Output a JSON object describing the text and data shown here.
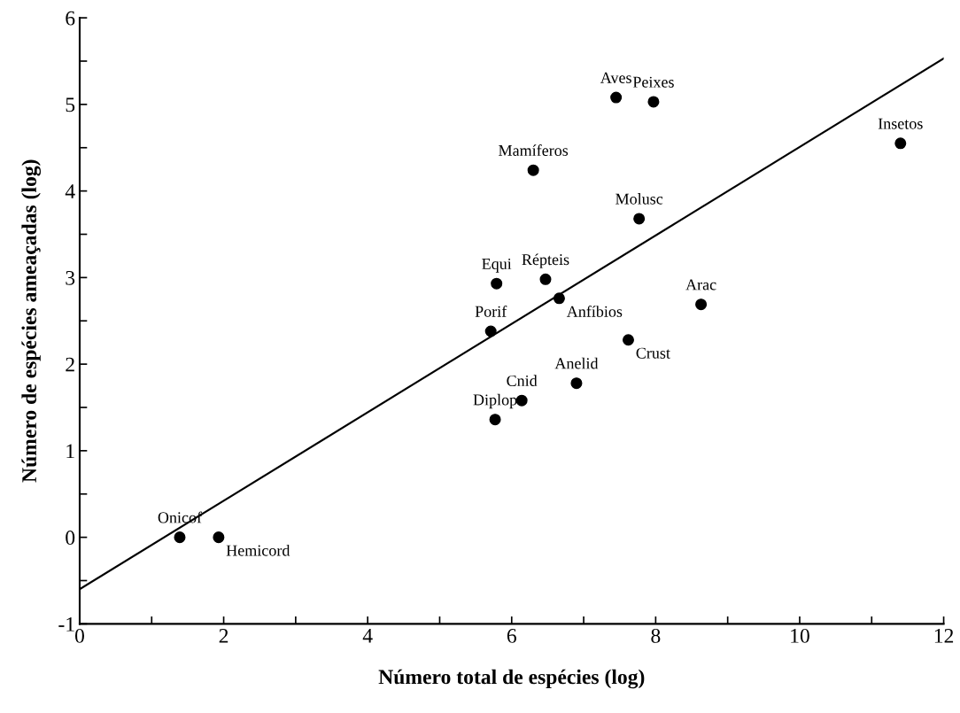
{
  "chart_data": {
    "type": "scatter",
    "xlabel": "Número total de espécies (log)",
    "ylabel": "Número de espécies ameaçadas (log)",
    "xlim": [
      0,
      12
    ],
    "ylim": [
      -1,
      6
    ],
    "xticks": [
      0,
      {
        "value": 1,
        "label": null
      },
      2,
      {
        "value": 3,
        "label": null
      },
      4,
      {
        "value": 5,
        "label": null
      },
      6,
      {
        "value": 7,
        "label": null
      },
      8,
      {
        "value": 9,
        "label": null
      },
      10,
      {
        "value": 11,
        "label": null
      },
      12
    ],
    "yticks": [
      -1,
      {
        "value": -0.5,
        "label": null
      },
      0,
      {
        "value": 0.5,
        "label": null
      },
      1,
      {
        "value": 1.5,
        "label": null
      },
      2,
      {
        "value": 2.5,
        "label": null
      },
      3,
      {
        "value": 3.5,
        "label": null
      },
      4,
      {
        "value": 4.5,
        "label": null
      },
      5,
      {
        "value": 5.5,
        "label": null
      },
      6
    ],
    "grid": false,
    "marker": "circle",
    "series": [
      {
        "color": "#000000",
        "x": [
          1.39,
          1.93,
          5.77,
          6.14,
          6.9,
          5.71,
          5.79,
          6.47,
          6.66,
          7.62,
          8.63,
          7.77,
          6.3,
          7.45,
          7.97,
          11.4
        ],
        "values": [
          0,
          0,
          1.36,
          1.58,
          1.78,
          2.38,
          2.93,
          2.98,
          2.76,
          2.28,
          2.69,
          3.68,
          4.24,
          5.08,
          5.03,
          4.55
        ]
      },
      {
        "type": "line",
        "color": "#000000",
        "marker": "none",
        "x": [
          0,
          12
        ],
        "values": [
          -0.6,
          5.53
        ]
      }
    ],
    "annotations": [
      {
        "text": "Onicof",
        "x": 1.39,
        "y": 0
      },
      {
        "text": "Hemicord",
        "x": 1.93,
        "y": 0
      },
      {
        "text": "Diplop",
        "x": 5.77,
        "y": 1.36
      },
      {
        "text": "Cnid",
        "x": 6.14,
        "y": 1.58
      },
      {
        "text": "Anelid",
        "x": 6.9,
        "y": 1.78
      },
      {
        "text": "Porif",
        "x": 5.71,
        "y": 2.38
      },
      {
        "text": "Equi",
        "x": 5.79,
        "y": 2.93
      },
      {
        "text": "Répteis",
        "x": 6.47,
        "y": 2.98
      },
      {
        "text": "Anfíbios",
        "x": 6.66,
        "y": 2.76
      },
      {
        "text": "Crust",
        "x": 7.62,
        "y": 2.28
      },
      {
        "text": "Arac",
        "x": 8.63,
        "y": 2.69
      },
      {
        "text": "Molusc",
        "x": 7.77,
        "y": 3.68
      },
      {
        "text": "Mamíferos",
        "x": 6.3,
        "y": 4.24
      },
      {
        "text": "Aves",
        "x": 7.45,
        "y": 5.08
      },
      {
        "text": "Peixes",
        "x": 7.97,
        "y": 5.03
      },
      {
        "text": "Insetos",
        "x": 11.4,
        "y": 4.55
      }
    ]
  }
}
